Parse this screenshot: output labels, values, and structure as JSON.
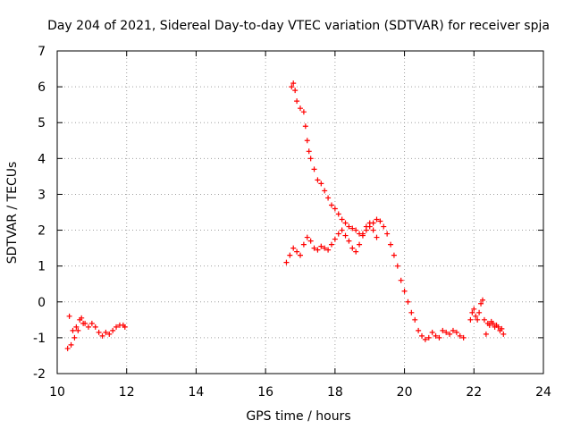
{
  "chart_data": {
    "type": "scatter",
    "title": "Day 204 of 2021, Sidereal Day-to-day VTEC variation (SDTVAR) for receiver spja",
    "xlabel": "GPS time / hours",
    "ylabel": "SDTVAR / TECUs",
    "xlim": [
      10,
      24
    ],
    "ylim": [
      -2,
      7
    ],
    "xticks": [
      "10",
      "12",
      "14",
      "16",
      "18",
      "20",
      "22",
      "24"
    ],
    "yticks": [
      "-2",
      "-1",
      "0",
      "1",
      "2",
      "3",
      "4",
      "5",
      "6",
      "7"
    ],
    "grid": true,
    "marker": "+",
    "color": "#ff0000",
    "series": [
      {
        "name": "SDTVAR",
        "segments": [
          {
            "x": [
              10.3,
              10.35,
              10.4,
              10.45,
              10.5,
              10.55,
              10.6,
              10.65,
              10.7,
              10.75,
              10.8,
              10.9,
              11.0,
              11.1,
              11.2,
              11.3,
              11.4,
              11.5,
              11.6,
              11.7,
              11.8,
              11.9,
              11.95
            ],
            "y": [
              -1.3,
              -0.4,
              -1.2,
              -0.8,
              -1.0,
              -0.7,
              -0.8,
              -0.5,
              -0.45,
              -0.6,
              -0.6,
              -0.7,
              -0.6,
              -0.7,
              -0.85,
              -0.95,
              -0.85,
              -0.9,
              -0.8,
              -0.7,
              -0.65,
              -0.65,
              -0.7
            ]
          },
          {
            "x": [
              16.6,
              16.7,
              16.8,
              16.9,
              17.0,
              17.1,
              17.2,
              17.3,
              17.4,
              17.5,
              17.6,
              17.7,
              17.8,
              17.9,
              18.0,
              18.1,
              18.2,
              18.3,
              18.4,
              18.5,
              18.6,
              18.7,
              18.8,
              18.9,
              19.0,
              19.1,
              19.2
            ],
            "y": [
              1.1,
              1.3,
              1.5,
              1.4,
              1.3,
              1.6,
              1.8,
              1.7,
              1.5,
              1.45,
              1.55,
              1.5,
              1.45,
              1.6,
              1.75,
              1.9,
              2.0,
              1.85,
              1.7,
              1.5,
              1.4,
              1.6,
              1.9,
              2.1,
              2.2,
              2.0,
              1.8
            ]
          },
          {
            "x": [
              16.75,
              16.8,
              16.85,
              16.9,
              17.0,
              17.1,
              17.15,
              17.2,
              17.25,
              17.3,
              17.4,
              17.5,
              17.6,
              17.7,
              17.8,
              17.9,
              18.0,
              18.1,
              18.2,
              18.3,
              18.4,
              18.5,
              18.6,
              18.7,
              18.8,
              18.9,
              19.0,
              19.1,
              19.2,
              19.3,
              19.4,
              19.5,
              19.6,
              19.7,
              19.8,
              19.9,
              20.0,
              20.1,
              20.2,
              20.3,
              20.4,
              20.5,
              20.6,
              20.7,
              20.8,
              20.9,
              21.0,
              21.1,
              21.2,
              21.3,
              21.4,
              21.5,
              21.6,
              21.7
            ],
            "y": [
              6.0,
              6.1,
              5.9,
              5.6,
              5.4,
              5.3,
              4.9,
              4.5,
              4.2,
              4.0,
              3.7,
              3.4,
              3.3,
              3.1,
              2.9,
              2.7,
              2.6,
              2.45,
              2.3,
              2.2,
              2.1,
              2.05,
              2.0,
              1.9,
              1.85,
              2.0,
              2.1,
              2.2,
              2.3,
              2.25,
              2.1,
              1.9,
              1.6,
              1.3,
              1.0,
              0.6,
              0.3,
              0.0,
              -0.3,
              -0.5,
              -0.8,
              -0.95,
              -1.05,
              -1.0,
              -0.85,
              -0.95,
              -1.0,
              -0.8,
              -0.85,
              -0.9,
              -0.8,
              -0.85,
              -0.95,
              -1.0
            ]
          },
          {
            "x": [
              21.9,
              21.95,
              22.0,
              22.05,
              22.1,
              22.15,
              22.2,
              22.25,
              22.3,
              22.35,
              22.4,
              22.45,
              22.5,
              22.55,
              22.6,
              22.65,
              22.7,
              22.75,
              22.8,
              22.85
            ],
            "y": [
              -0.5,
              -0.3,
              -0.2,
              -0.4,
              -0.5,
              -0.3,
              -0.05,
              0.05,
              -0.5,
              -0.9,
              -0.6,
              -0.65,
              -0.55,
              -0.6,
              -0.7,
              -0.65,
              -0.7,
              -0.8,
              -0.75,
              -0.9
            ]
          }
        ]
      }
    ]
  }
}
